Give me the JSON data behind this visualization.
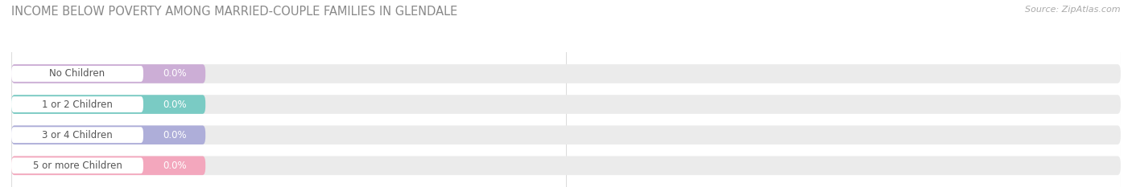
{
  "title": "INCOME BELOW POVERTY AMONG MARRIED-COUPLE FAMILIES IN GLENDALE",
  "source": "Source: ZipAtlas.com",
  "categories": [
    "No Children",
    "1 or 2 Children",
    "3 or 4 Children",
    "5 or more Children"
  ],
  "values": [
    0.0,
    0.0,
    0.0,
    0.0
  ],
  "bar_colors": [
    "#c9a8d4",
    "#6ec8c0",
    "#a8a8d8",
    "#f4a0b8"
  ],
  "background_color": "#ffffff",
  "bar_bg_color": "#ebebeb",
  "title_color": "#888888",
  "source_color": "#aaaaaa",
  "label_text_color": "#555555",
  "value_text_color": "#ffffff",
  "tick_color": "#aaaaaa",
  "grid_color": "#dddddd",
  "title_fontsize": 10.5,
  "bar_label_fontsize": 8.5,
  "tick_fontsize": 8.5
}
